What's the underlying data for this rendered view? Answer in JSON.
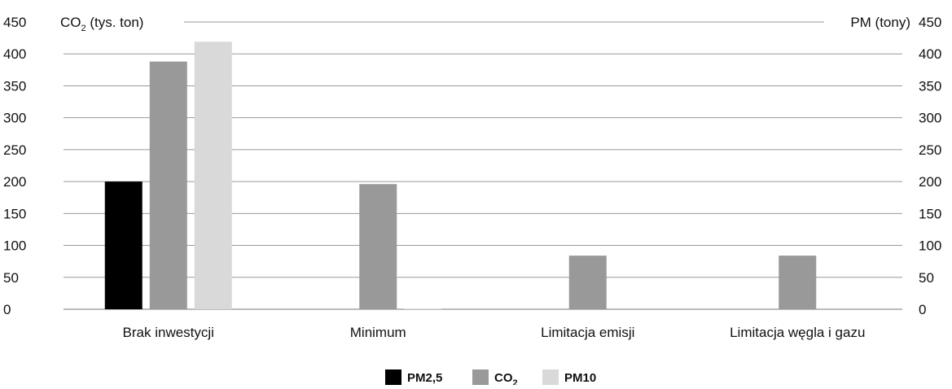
{
  "chart_data": {
    "type": "bar",
    "y_left_label": "CO2 (tys. ton)",
    "y_right_label": "PM (tony)",
    "ylim": [
      0,
      450
    ],
    "yticks": [
      0,
      50,
      100,
      150,
      200,
      250,
      300,
      350,
      400,
      450
    ],
    "grid": true,
    "categories": [
      "Brak inwestycji",
      "Minimum",
      "Limitacja emisji",
      "Limitacja węgla i gazu"
    ],
    "series": [
      {
        "name": "PM2,5",
        "color": "#000000",
        "values": [
          200,
          0,
          0,
          0
        ]
      },
      {
        "name": "CO2",
        "color": "#999999",
        "values": [
          388,
          196,
          84,
          84
        ]
      },
      {
        "name": "PM10",
        "color": "#d9d9d9",
        "values": [
          419,
          1,
          0,
          0
        ]
      }
    ],
    "legend_position": "bottom-center"
  }
}
